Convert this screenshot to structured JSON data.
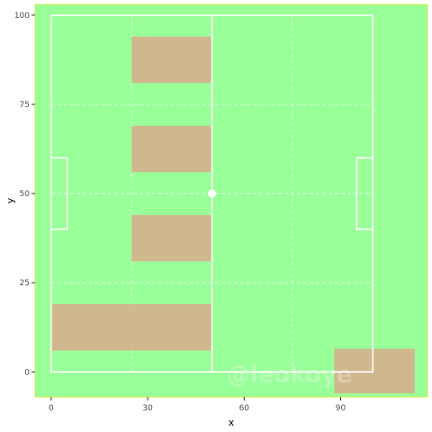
{
  "chart_data": {
    "type": "pitch-heatmap",
    "xlabel": "x",
    "ylabel": "y",
    "xlim": [
      -5,
      117
    ],
    "ylim": [
      -7,
      103
    ],
    "x_ticks": [
      0,
      30,
      60,
      90
    ],
    "y_ticks": [
      0,
      25,
      50,
      75,
      100
    ],
    "pitch": {
      "length": 100,
      "width": 100,
      "line_color": "#ffffff",
      "grass_color": "#99ff99",
      "border_color": "#ccee44",
      "penalty_box": {
        "depth": 5,
        "y_min": 40,
        "y_max": 60
      },
      "center_spot": [
        50,
        50
      ],
      "guide_lines_x": [
        25,
        75
      ],
      "guide_lines_y": [
        25,
        50,
        75
      ]
    },
    "zones": [
      {
        "x_min": 25,
        "x_max": 50,
        "y_min": 81,
        "y_max": 94
      },
      {
        "x_min": 25,
        "x_max": 50,
        "y_min": 56,
        "y_max": 69
      },
      {
        "x_min": 25,
        "x_max": 50,
        "y_min": 31,
        "y_max": 44
      },
      {
        "x_min": 0,
        "x_max": 50,
        "y_min": 6,
        "y_max": 19
      },
      {
        "x_min": 88,
        "x_max": 113,
        "y_min": -6,
        "y_max": 6.5
      }
    ],
    "zone_color": "#d2b48c",
    "watermark": "@leokoye"
  }
}
